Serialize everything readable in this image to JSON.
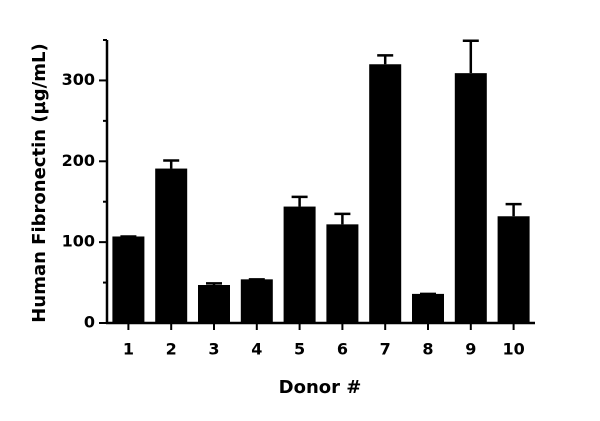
{
  "chart_data": {
    "type": "bar",
    "x_label": "Donor #",
    "y_label": "Human Fibronectin (µg/mL)",
    "categories": [
      "1",
      "2",
      "3",
      "4",
      "5",
      "6",
      "7",
      "8",
      "9",
      "10"
    ],
    "values": [
      107,
      191,
      47,
      54,
      144,
      122,
      320,
      36,
      309,
      132
    ],
    "errors": [
      0,
      10,
      2,
      0,
      12,
      13,
      11,
      0,
      40,
      15
    ],
    "color": "#000000",
    "ylim": [
      0,
      350
    ],
    "yticks": [
      0,
      100,
      200,
      300
    ],
    "minor_yticks": [
      50,
      150,
      250,
      350
    ]
  }
}
